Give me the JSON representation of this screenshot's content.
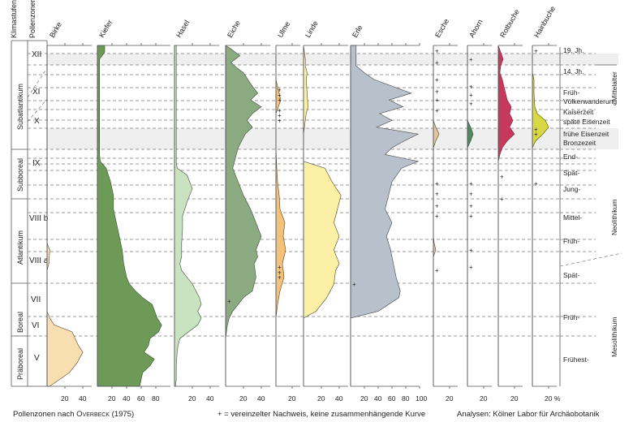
{
  "header": {
    "klimastufen": "Klimastufen",
    "pollenzonen": "Pollenzonen"
  },
  "climate_stages": [
    "Subatlantikum",
    "Subboreal",
    "Atlantikum",
    "Boreal",
    "Präboreal"
  ],
  "pollen_zones": [
    "XII",
    "XI",
    "X",
    "IX",
    "VIII b",
    "VIII a",
    "VII",
    "VI",
    "V"
  ],
  "taxa": [
    {
      "key": "birke",
      "label": "Birke",
      "color": "#f9deb1"
    },
    {
      "key": "kiefer",
      "label": "Kiefer",
      "color": "#6e9a58"
    },
    {
      "key": "hasel",
      "label": "Hasel",
      "color": "#c9e2c0"
    },
    {
      "key": "eiche",
      "label": "Eiche",
      "color": "#8caa82"
    },
    {
      "key": "ulme",
      "label": "Ulme",
      "color": "#f3c27a"
    },
    {
      "key": "linde",
      "label": "Linde",
      "color": "#fcefa6"
    },
    {
      "key": "erle",
      "label": "Erle",
      "color": "#b8c1cb"
    },
    {
      "key": "esche",
      "label": "Esche",
      "color": "#e3c79b"
    },
    {
      "key": "ahorn",
      "label": "Ahorn",
      "color": "#4e8a60"
    },
    {
      "key": "rotbuche",
      "label": "Rotbuche",
      "color": "#c4395c"
    },
    {
      "key": "hainbuche",
      "label": "Hainbuche",
      "color": "#d8d842"
    }
  ],
  "axis_ticks": {
    "birke": [
      "20",
      "40"
    ],
    "kiefer": [
      "20",
      "40",
      "60",
      "80"
    ],
    "hasel": [
      "20",
      "40"
    ],
    "eiche": [
      "20",
      "40"
    ],
    "ulme": [
      "20"
    ],
    "linde": [
      "20",
      "40"
    ],
    "erle": [
      "20",
      "40",
      "60",
      "80",
      "100"
    ],
    "esche": [
      "20"
    ],
    "ahorn": [
      "20"
    ],
    "rotbuche": [
      "20"
    ],
    "hainbuche": [
      "20 %"
    ]
  },
  "right_labels": {
    "jh19": "19. Jh.",
    "jh14": "14. Jh.",
    "frueh_1": "Früh-",
    "voelkerwanderung": "Völkerwanderung",
    "kaiserzeit": "Kaiserzeit",
    "spaete_eisenzeit": "späte Eisenzeit",
    "fruehe_eisenzeit": "frühe Eisenzeit",
    "bronzezeit": "Bronzezeit",
    "end": "End-",
    "spaet_1": "Spät-",
    "jung": "Jung-",
    "mittel": "Mittel-",
    "frueh_2": "Früh-",
    "spaet_2": "Spät-",
    "frueh_3": "Früh-",
    "fruehest": "Frühest-"
  },
  "periods": {
    "mittelalter": "Mittelalter",
    "neolithikum": "Neolithikum",
    "mesolithikum": "Mesolithikum"
  },
  "plus_sign": "+",
  "footer": {
    "left_prefix": "Pollenzonen nach ",
    "author": "Overbeck",
    "year": " (1975)",
    "middle": "+ = vereinzelter Nachweis, keine zusammenhängende Kurve",
    "right": "Analysen: Kölner Labor für Archäobotanik"
  },
  "chart_data": {
    "type": "area",
    "title": "",
    "y_axis": "relative depth / age (0 = top of diagram, 100 = bottom)",
    "x_unit": "% of pollen sum",
    "zone_boundaries": [
      {
        "zone": "XII",
        "from": 0,
        "to": 6
      },
      {
        "zone": "XI",
        "from": 6,
        "to": 24
      },
      {
        "zone": "X",
        "from": 24,
        "to": 34
      },
      {
        "zone": "IX",
        "from": 34,
        "to": 45
      },
      {
        "zone": "VIII b",
        "from": 45,
        "to": 64
      },
      {
        "zone": "VIII a",
        "from": 64,
        "to": 72
      },
      {
        "zone": "VII",
        "from": 72,
        "to": 80
      },
      {
        "zone": "VI",
        "from": 80,
        "to": 85
      },
      {
        "zone": "V",
        "from": 85,
        "to": 100
      }
    ],
    "series": [
      {
        "name": "Birke",
        "max": 50,
        "depth": [
          0,
          58,
          60,
          64,
          66,
          70,
          74,
          78,
          80,
          82,
          84,
          88,
          90,
          93,
          96,
          100
        ],
        "values": [
          0,
          0,
          3,
          2,
          0,
          0,
          0,
          0,
          3,
          8,
          28,
          35,
          40,
          34,
          25,
          3
        ]
      },
      {
        "name": "Kiefer",
        "max": 100,
        "depth": [
          0,
          2,
          4,
          8,
          14,
          20,
          26,
          30,
          32,
          34,
          36,
          40,
          44,
          48,
          52,
          56,
          60,
          64,
          68,
          70,
          72,
          74,
          76,
          80,
          82,
          84,
          86,
          88,
          90,
          92,
          94,
          96,
          100
        ],
        "values": [
          10,
          10,
          3,
          3,
          3,
          3,
          3,
          3,
          3,
          4,
          12,
          18,
          22,
          22,
          26,
          30,
          34,
          36,
          40,
          44,
          52,
          62,
          75,
          82,
          88,
          84,
          72,
          70,
          64,
          78,
          72,
          62,
          58
        ]
      },
      {
        "name": "Hasel",
        "max": 50,
        "depth": [
          0,
          4,
          6,
          12,
          18,
          24,
          28,
          34,
          36,
          38,
          42,
          46,
          50,
          54,
          58,
          62,
          64,
          66,
          68,
          70,
          72,
          74,
          76,
          78,
          80,
          82,
          84,
          86,
          88,
          90,
          94,
          98,
          100
        ],
        "values": [
          2,
          2,
          2,
          2,
          2,
          2,
          2,
          2,
          3,
          14,
          20,
          14,
          9,
          9,
          8,
          8,
          6,
          8,
          14,
          20,
          24,
          28,
          30,
          26,
          30,
          26,
          16,
          6,
          4,
          3,
          2,
          2,
          1
        ]
      },
      {
        "name": "Eiche",
        "max": 50,
        "depth": [
          0,
          1,
          3,
          5,
          6,
          8,
          12,
          14,
          16,
          18,
          20,
          22,
          24,
          26,
          28,
          30,
          32,
          34,
          36,
          40,
          44,
          48,
          52,
          56,
          60,
          62,
          64,
          68,
          72,
          74,
          76,
          78,
          80,
          82,
          86,
          90,
          100
        ],
        "values": [
          0,
          6,
          16,
          6,
          10,
          20,
          30,
          36,
          28,
          40,
          30,
          24,
          30,
          22,
          18,
          14,
          12,
          10,
          8,
          14,
          20,
          28,
          34,
          40,
          34,
          36,
          32,
          34,
          30,
          20,
          14,
          8,
          4,
          2,
          0,
          0,
          0
        ]
      },
      {
        "name": "Ulme",
        "max": 30,
        "depth": [
          0,
          10,
          12,
          14,
          16,
          18,
          20,
          24,
          30,
          36,
          40,
          44,
          48,
          50,
          52,
          56,
          60,
          64,
          68,
          72,
          76,
          80,
          100
        ],
        "values": [
          0,
          0,
          2,
          4,
          6,
          3,
          0,
          0,
          0,
          1,
          2,
          4,
          5,
          8,
          11,
          9,
          12,
          8,
          10,
          5,
          2,
          0,
          0
        ]
      },
      {
        "name": "Linde",
        "max": 50,
        "depth": [
          0,
          4,
          6,
          8,
          10,
          14,
          18,
          20,
          22,
          24,
          26,
          30,
          34,
          36,
          40,
          44,
          48,
          52,
          56,
          60,
          64,
          66,
          70,
          74,
          78,
          80,
          100
        ],
        "values": [
          0,
          2,
          2,
          4,
          3,
          4,
          5,
          3,
          2,
          1,
          0,
          0,
          0,
          24,
          32,
          42,
          38,
          34,
          40,
          34,
          40,
          36,
          34,
          26,
          14,
          0,
          0
        ]
      },
      {
        "name": "Erle",
        "max": 100,
        "depth": [
          0,
          2,
          4,
          6,
          8,
          10,
          14,
          16,
          18,
          20,
          22,
          24,
          26,
          28,
          30,
          32,
          34,
          36,
          40,
          44,
          48,
          52,
          56,
          60,
          64,
          68,
          72,
          74,
          78,
          80,
          100
        ],
        "values": [
          8,
          8,
          8,
          8,
          20,
          34,
          88,
          56,
          76,
          42,
          60,
          38,
          98,
          78,
          60,
          50,
          98,
          74,
          60,
          55,
          50,
          60,
          52,
          58,
          62,
          66,
          72,
          70,
          40,
          0,
          0
        ]
      },
      {
        "name": "Esche",
        "max": 30,
        "depth": [
          0,
          22,
          24,
          26,
          28,
          30,
          56,
          58,
          60,
          62,
          100
        ],
        "values": [
          0,
          0,
          3,
          7,
          3,
          0,
          0,
          1,
          3,
          0,
          0
        ]
      },
      {
        "name": "Ahorn",
        "max": 30,
        "depth": [
          0,
          22,
          24,
          26,
          28,
          30,
          100
        ],
        "values": [
          0,
          0,
          4,
          7,
          4,
          0,
          0
        ]
      },
      {
        "name": "Rotbuche",
        "max": 30,
        "depth": [
          0,
          2,
          4,
          6,
          8,
          10,
          12,
          14,
          16,
          18,
          20,
          22,
          24,
          26,
          28,
          30,
          32,
          34,
          100
        ],
        "values": [
          0,
          3,
          6,
          3,
          2,
          5,
          7,
          9,
          11,
          16,
          14,
          18,
          14,
          20,
          11,
          5,
          2,
          0,
          0
        ]
      },
      {
        "name": "Hainbuche",
        "max": 30,
        "depth": [
          0,
          8,
          10,
          14,
          18,
          20,
          22,
          24,
          26,
          28,
          30,
          100
        ],
        "values": [
          0,
          0,
          2,
          2,
          3,
          6,
          16,
          20,
          13,
          4,
          0,
          0
        ]
      }
    ],
    "occasional_finds": {
      "Ulme": [
        13,
        14.5,
        16,
        19,
        20.5,
        22,
        65,
        66.5,
        68
      ],
      "Erle": [
        70
      ],
      "Eiche": [
        75
      ],
      "Esche": [
        1.5,
        5,
        10,
        13.5,
        16,
        19,
        40.5,
        43.5,
        47,
        50,
        66
      ],
      "Ahorn": [
        4,
        12,
        14.5,
        17,
        40.5,
        43.5,
        47,
        50,
        60,
        65
      ],
      "Rotbuche": [
        38.5,
        45
      ],
      "Hainbuche": [
        1.5,
        24.5,
        26,
        40.5
      ]
    }
  }
}
